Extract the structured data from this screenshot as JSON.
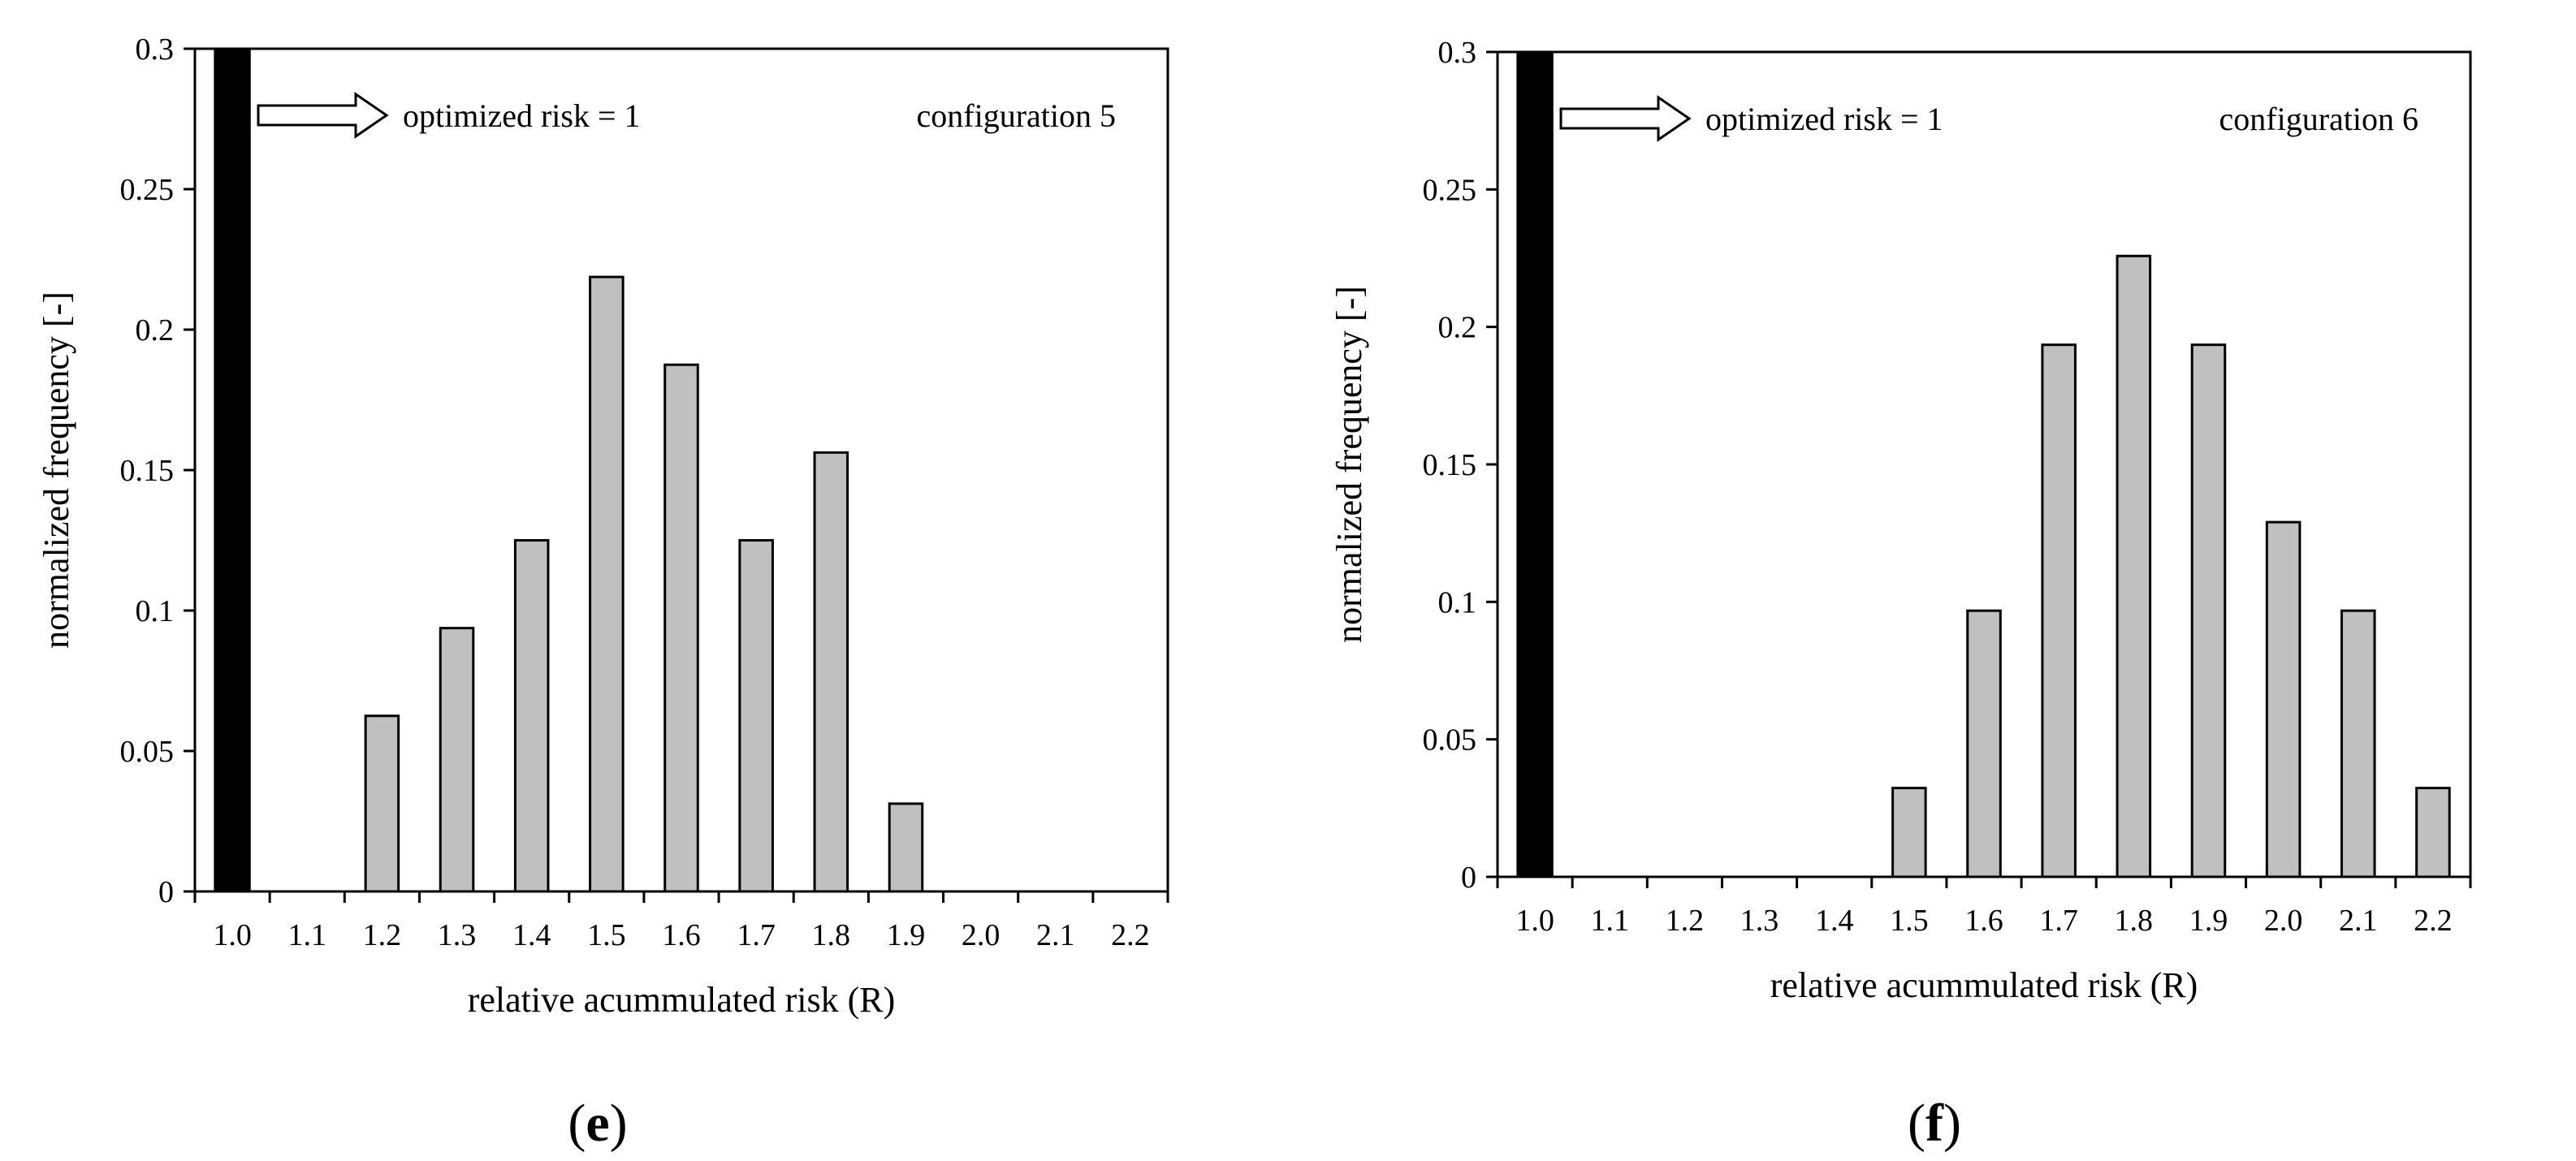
{
  "chart_data": [
    {
      "type": "bar",
      "panel_label": "e",
      "title": "",
      "annotation_text": "optimized risk = 1",
      "configuration_label": "configuration 5",
      "xlabel": "relative acummulated risk (R)",
      "ylabel": "normalized frequency [-]",
      "ylim": [
        0,
        0.3
      ],
      "yticks": [
        0,
        0.05,
        0.1,
        0.15,
        0.2,
        0.25,
        0.3
      ],
      "ytick_labels": [
        "0",
        "0.05",
        "0.1",
        "0.15",
        "0.2",
        "0.25",
        "0.3"
      ],
      "categories": [
        "1.0",
        "1.1",
        "1.2",
        "1.3",
        "1.4",
        "1.5",
        "1.6",
        "1.7",
        "1.8",
        "1.9",
        "2.0",
        "2.1",
        "2.2"
      ],
      "values": [
        0.3,
        0,
        0.0625,
        0.09375,
        0.125,
        0.21875,
        0.1875,
        0.125,
        0.15625,
        0.03125,
        0,
        0,
        0
      ],
      "highlight_category": "1.0",
      "colors": {
        "bar": "#c0c0c0",
        "highlight": "#000000",
        "stroke": "#000000"
      }
    },
    {
      "type": "bar",
      "panel_label": "f",
      "title": "",
      "annotation_text": "optimized risk = 1",
      "configuration_label": "configuration 6",
      "xlabel": "relative acummulated risk (R)",
      "ylabel": "normalized frequency [-]",
      "ylim": [
        0,
        0.3
      ],
      "yticks": [
        0,
        0.05,
        0.1,
        0.15,
        0.2,
        0.25,
        0.3
      ],
      "ytick_labels": [
        "0",
        "0.05",
        "0.1",
        "0.15",
        "0.2",
        "0.25",
        "0.3"
      ],
      "categories": [
        "1.0",
        "1.1",
        "1.2",
        "1.3",
        "1.4",
        "1.5",
        "1.6",
        "1.7",
        "1.8",
        "1.9",
        "2.0",
        "2.1",
        "2.2"
      ],
      "values": [
        0.3,
        0,
        0,
        0,
        0,
        0.0323,
        0.0968,
        0.1935,
        0.2258,
        0.1935,
        0.129,
        0.0968,
        0.0323
      ],
      "highlight_category": "1.0",
      "colors": {
        "bar": "#c0c0c0",
        "highlight": "#000000",
        "stroke": "#000000"
      }
    }
  ]
}
